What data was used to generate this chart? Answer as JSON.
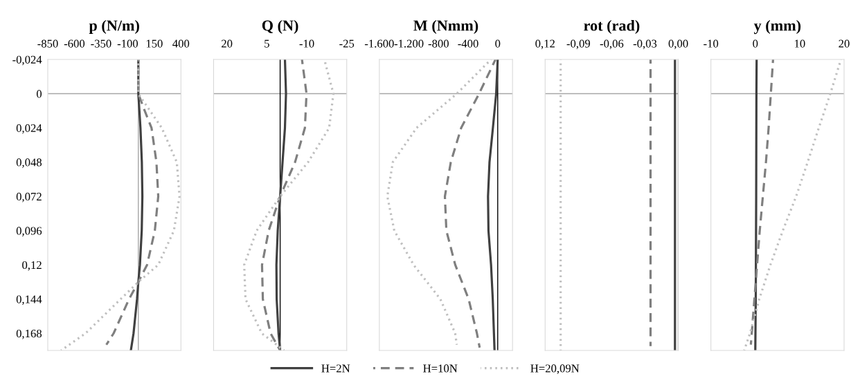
{
  "chart_data": [
    {
      "type": "line",
      "title": "p (N/m)",
      "xlim": [
        -850,
        400
      ],
      "xticks": [
        -850,
        -600,
        -350,
        -100,
        150,
        400
      ],
      "ylim": [
        0.18,
        -0.024
      ],
      "yticks": [
        {
          "value": -0.024,
          "label": "-0,024"
        },
        0,
        {
          "value": 0.024,
          "label": "0,024"
        },
        {
          "value": 0.048,
          "label": "0,048"
        },
        {
          "value": 0.072,
          "label": "0,072"
        },
        {
          "value": 0.096,
          "label": "0,096"
        },
        {
          "value": 0.12,
          "label": "0,12"
        },
        {
          "value": 0.144,
          "label": "0,144"
        },
        {
          "value": 0.168,
          "label": "0,168"
        }
      ],
      "grid": false,
      "legend": "bottom",
      "ref_lines": [
        {
          "axis": "y",
          "value": 0,
          "color": "#a6a6a6"
        },
        {
          "axis": "x",
          "value": 0,
          "color": "#a6a6a6"
        }
      ],
      "series": [
        {
          "name": "H=2N",
          "color": "#404040",
          "line_style": "solid",
          "x": [
            0,
            0,
            10,
            20,
            33,
            38,
            32,
            15,
            0,
            -12,
            -45,
            -70
          ],
          "values": [
            -0.024,
            0,
            0.012,
            0.024,
            0.048,
            0.072,
            0.096,
            0.12,
            0.132,
            0.144,
            0.168,
            0.18
          ]
        },
        {
          "name": "H=10N",
          "color": "#7f7f7f",
          "line_style": "dashed",
          "x": [
            0,
            0,
            60,
            124,
            170,
            187,
            155,
            82,
            0,
            -87,
            -232,
            -300
          ],
          "values": [
            -0.024,
            0,
            0.012,
            0.024,
            0.048,
            0.072,
            0.096,
            0.12,
            0.132,
            0.144,
            0.168,
            0.176
          ]
        },
        {
          "name": "H=20,09N",
          "color": "#bfbfbf",
          "line_style": "dotted",
          "x": [
            0,
            0,
            110,
            220,
            361,
            387,
            334,
            187,
            0,
            -166,
            -495,
            -725
          ],
          "values": [
            -0.024,
            0,
            0.012,
            0.024,
            0.048,
            0.072,
            0.096,
            0.12,
            0.132,
            0.144,
            0.168,
            0.18
          ]
        }
      ]
    },
    {
      "type": "line",
      "title": "Q (N)",
      "xlim": [
        25,
        -25
      ],
      "xticks": [
        20,
        5,
        -10,
        -25
      ],
      "ylim": [
        0.18,
        -0.024
      ],
      "tick_labels": "x",
      "grid": false,
      "ref_lines": [
        {
          "axis": "y",
          "value": 0,
          "color": "#a6a6a6"
        },
        {
          "axis": "x",
          "value": 0,
          "color": "#000000"
        }
      ],
      "series": [
        {
          "color": "#404040",
          "line_style": "solid",
          "x": [
            -1.8,
            -2.2,
            -1.8,
            -0.9,
            0,
            0.9,
            1.4,
            1.3,
            0.6,
            0
          ],
          "values": [
            -0.024,
            0,
            0.024,
            0.048,
            0.072,
            0.096,
            0.12,
            0.144,
            0.168,
            0.18
          ]
        },
        {
          "color": "#7f7f7f",
          "line_style": "dashed",
          "x": [
            -8.2,
            -9.9,
            -9.3,
            -5.6,
            0,
            4.3,
            6.8,
            6.5,
            3.6,
            0
          ],
          "values": [
            -0.024,
            0,
            0.024,
            0.048,
            0.072,
            0.096,
            0.12,
            0.144,
            0.168,
            0.18
          ]
        },
        {
          "color": "#bfbfbf",
          "line_style": "dotted",
          "x": [
            -16.6,
            -20,
            -18.4,
            -10.5,
            0,
            8.8,
            13.5,
            13,
            6.9,
            -1.5
          ],
          "values": [
            -0.024,
            0,
            0.024,
            0.048,
            0.072,
            0.096,
            0.12,
            0.144,
            0.168,
            0.18
          ]
        }
      ]
    },
    {
      "type": "line",
      "title": "M (Nmm)",
      "xlim": [
        -1600,
        200
      ],
      "xticks": [
        {
          "value": -1600,
          "label": "-1.600"
        },
        {
          "value": -1200,
          "label": "-1.200"
        },
        -800,
        -400,
        0
      ],
      "ylim": [
        0.18,
        -0.024
      ],
      "tick_labels": "x",
      "grid": false,
      "ref_lines": [
        {
          "axis": "y",
          "value": 0,
          "color": "#a6a6a6"
        },
        {
          "axis": "x",
          "value": 0,
          "color": "#000000"
        }
      ],
      "series": [
        {
          "color": "#404040",
          "line_style": "solid",
          "x": [
            0,
            -21,
            -65,
            -111,
            -131,
            -125,
            -90,
            -67,
            -51,
            -43
          ],
          "values": [
            -0.024,
            0,
            0.024,
            0.048,
            0.072,
            0.096,
            0.12,
            0.144,
            0.168,
            0.18
          ]
        },
        {
          "color": "#7f7f7f",
          "line_style": "dashed",
          "x": [
            -30,
            -252,
            -494,
            -634,
            -714,
            -694,
            -574,
            -393,
            -281,
            -244
          ],
          "values": [
            -0.024,
            0,
            0.024,
            0.048,
            0.072,
            0.096,
            0.12,
            0.144,
            0.168,
            0.178
          ]
        },
        {
          "color": "#bfbfbf",
          "line_style": "dotted",
          "x": [
            -90,
            -553,
            -1097,
            -1418,
            -1492,
            -1398,
            -1137,
            -775,
            -575,
            -553
          ],
          "values": [
            -0.024,
            0,
            0.024,
            0.048,
            0.072,
            0.096,
            0.12,
            0.144,
            0.168,
            0.176
          ]
        }
      ]
    },
    {
      "type": "line",
      "title": "rot (rad)",
      "xlim": [
        -0.12,
        0
      ],
      "xticks": [
        {
          "value": -0.12,
          "label": "0,12"
        },
        {
          "value": -0.09,
          "label": "-0,09"
        },
        {
          "value": -0.06,
          "label": "-0,06"
        },
        {
          "value": -0.03,
          "label": "-0,03"
        },
        {
          "value": 0,
          "label": "0,00"
        }
      ],
      "ylim": [
        0.18,
        -0.024
      ],
      "tick_labels": "x",
      "grid": false,
      "ref_lines": [
        {
          "axis": "y",
          "value": 0,
          "color": "#a6a6a6"
        },
        {
          "axis": "x",
          "value": 0,
          "color": "#000000"
        }
      ],
      "series": [
        {
          "color": "#404040",
          "line_style": "solid",
          "x": [
            -0.003,
            -0.003
          ],
          "values": [
            -0.024,
            0.18
          ]
        },
        {
          "color": "#7f7f7f",
          "line_style": "dashed",
          "x": [
            -0.025,
            -0.025
          ],
          "values": [
            -0.024,
            0.177
          ]
        },
        {
          "color": "#bfbfbf",
          "line_style": "dotted",
          "x": [
            -0.106,
            -0.106
          ],
          "values": [
            -0.024,
            0.18
          ]
        }
      ]
    },
    {
      "type": "line",
      "title": "y (mm)",
      "xlim": [
        -10,
        20
      ],
      "xticks": [
        -10,
        0,
        10,
        20
      ],
      "ylim": [
        0.18,
        -0.024
      ],
      "tick_labels": "x",
      "grid": false,
      "ref_lines": [
        {
          "axis": "y",
          "value": 0,
          "color": "#a6a6a6"
        }
      ],
      "series": [
        {
          "color": "#404040",
          "line_style": "solid",
          "x": [
            0.3,
            0.25,
            0.2,
            0.1,
            0
          ],
          "values": [
            -0.024,
            0,
            0.072,
            0.144,
            0.18
          ]
        },
        {
          "color": "#7f7f7f",
          "line_style": "dashed",
          "x": [
            4.0,
            3.5,
            3.0,
            2.4,
            1.7,
            1.0,
            0.4,
            -0.2,
            -0.8,
            -1.0
          ],
          "values": [
            -0.024,
            0,
            0.024,
            0.048,
            0.072,
            0.096,
            0.12,
            0.144,
            0.168,
            0.176
          ]
        },
        {
          "color": "#bfbfbf",
          "line_style": "dotted",
          "x": [
            19.3,
            16.9,
            14.3,
            11.8,
            9.2,
            6.2,
            3.4,
            0.9,
            -1.2,
            -2.5
          ],
          "values": [
            -0.024,
            0,
            0.024,
            0.048,
            0.072,
            0.096,
            0.12,
            0.144,
            0.168,
            0.18
          ]
        }
      ]
    }
  ]
}
